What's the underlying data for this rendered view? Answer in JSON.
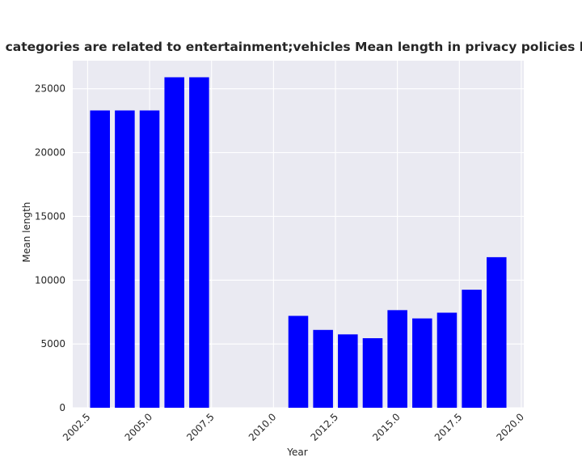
{
  "chart_data": {
    "type": "bar",
    "title": "when categories are related to entertainment;vehicles Mean length in privacy policies by Year",
    "xlabel": "Year",
    "ylabel": "Mean length",
    "x": [
      2003,
      2004,
      2005,
      2006,
      2007,
      2011,
      2012,
      2013,
      2014,
      2015,
      2016,
      2017,
      2018,
      2019
    ],
    "values": [
      23300,
      23300,
      23300,
      25900,
      25900,
      7200,
      6100,
      5750,
      5450,
      7650,
      7000,
      7450,
      9250,
      11800
    ],
    "xlim": [
      2001.9,
      2020.1
    ],
    "ylim": [
      0,
      27200
    ],
    "xticks": [
      2002.5,
      2005.0,
      2007.5,
      2010.0,
      2012.5,
      2015.0,
      2017.5,
      2020.0
    ],
    "xtick_labels": [
      "2002.5",
      "2005.0",
      "2007.5",
      "2010.0",
      "2012.5",
      "2015.0",
      "2017.5",
      "2020.0"
    ],
    "yticks": [
      0,
      5000,
      10000,
      15000,
      20000,
      25000
    ],
    "ytick_labels": [
      "0",
      "5000",
      "10000",
      "15000",
      "20000",
      "25000"
    ],
    "grid": true,
    "bar_color": "#0000ff",
    "plot_background": "#eaeaf2",
    "grid_color": "#ffffff"
  }
}
